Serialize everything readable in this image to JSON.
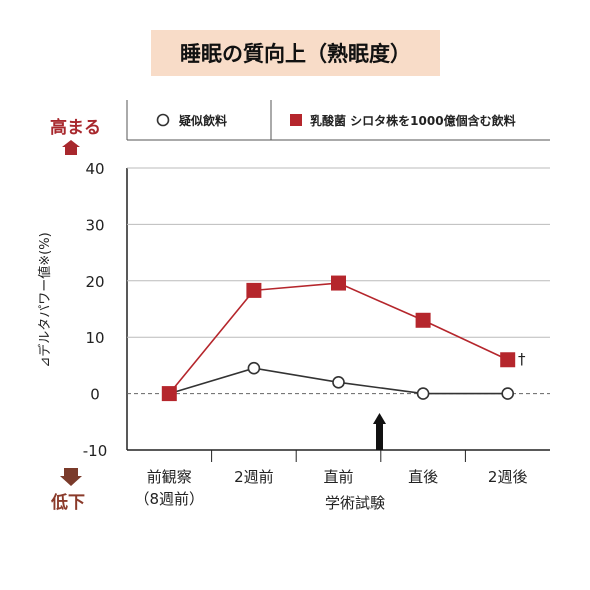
{
  "chart_data": {
    "type": "line",
    "title": "睡眠の質向上（熟眠度）",
    "ylabel": "⊿デルタパワー値※(%)",
    "xlabel": "学術試験",
    "ylim": [
      -10,
      40
    ],
    "yticks": [
      "40",
      "30",
      "20",
      "10",
      "0",
      "-10"
    ],
    "categories": [
      {
        "line1": "前観察",
        "line2": "（8週前）"
      },
      {
        "line1": "2週前",
        "line2": ""
      },
      {
        "line1": "直前",
        "line2": ""
      },
      {
        "line1": "直後",
        "line2": ""
      },
      {
        "line1": "2週後",
        "line2": ""
      }
    ],
    "series": [
      {
        "name": "疑似飲料",
        "marker": "open-circle",
        "color": "#333333",
        "values": [
          0,
          4.5,
          2,
          0,
          0
        ]
      },
      {
        "name": "乳酸菌 シロタ株を1000億個含む飲料",
        "marker": "filled-square",
        "color": "#b5262c",
        "values": [
          0,
          18.3,
          19.6,
          13,
          6
        ]
      }
    ],
    "annotation": "†",
    "top_label": "高まる",
    "bottom_label": "低下",
    "colors": {
      "accent": "#a8282d",
      "title_bg": "#f8dcc8",
      "arrow": "#111111"
    }
  }
}
